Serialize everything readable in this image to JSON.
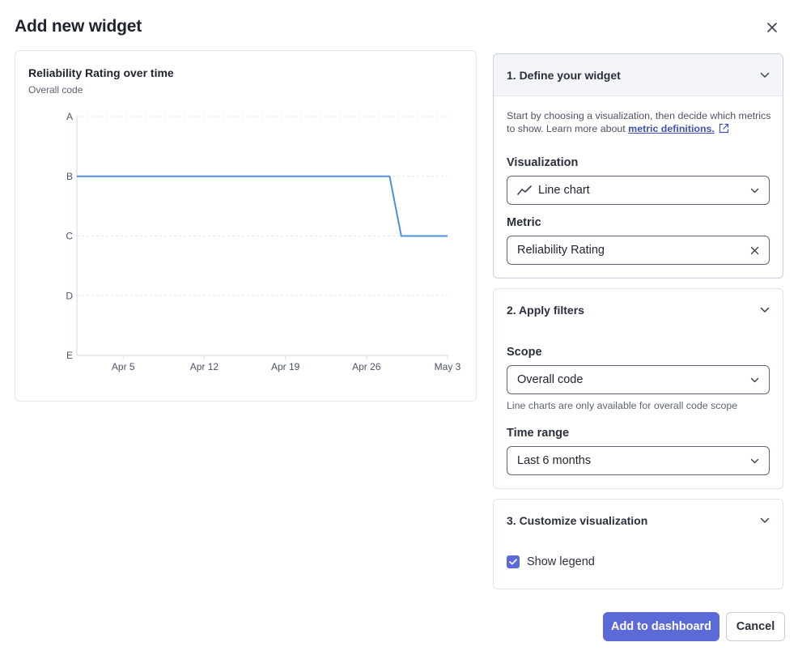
{
  "dialog": {
    "title": "Add new widget",
    "close_icon": "close-icon"
  },
  "preview": {
    "title": "Reliability Rating over time",
    "subtitle": "Overall code"
  },
  "chart_data": {
    "type": "line",
    "title": "Reliability Rating over time",
    "subtitle": "Overall code",
    "xlabel": "",
    "ylabel": "",
    "y_categories": [
      "A",
      "B",
      "C",
      "D",
      "E"
    ],
    "x_ticks": [
      "Apr 5",
      "Apr 12",
      "Apr 19",
      "Apr 26",
      "May 3"
    ],
    "x_range": [
      "Apr 1",
      "May 3"
    ],
    "grid": true,
    "series": [
      {
        "color": "#4a90e2",
        "points": [
          {
            "x": "Apr 1",
            "y": "B"
          },
          {
            "x": "Apr 28",
            "y": "B"
          },
          {
            "x": "Apr 29",
            "y": "C"
          },
          {
            "x": "May 3",
            "y": "C"
          }
        ]
      }
    ]
  },
  "step1": {
    "heading": "1. Define your widget",
    "description": "Start by choosing a visualization, then decide which metrics to show. Learn more about",
    "link_text": "metric definitions.",
    "visualization_label": "Visualization",
    "visualization_value": "Line chart",
    "metric_label": "Metric",
    "metric_value": "Reliability Rating"
  },
  "step2": {
    "heading": "2. Apply filters",
    "scope_label": "Scope",
    "scope_value": "Overall code",
    "scope_hint": "Line charts are only available for overall code scope",
    "time_label": "Time range",
    "time_value": "Last 6 months"
  },
  "step3": {
    "heading": "3. Customize visualization",
    "legend_label": "Show legend",
    "legend_checked": true
  },
  "actions": {
    "add_label": "Add to dashboard",
    "cancel_label": "Cancel"
  },
  "colors": {
    "accent": "#5c6ad8",
    "line": "#4a90e2",
    "link": "#3d51b8"
  }
}
